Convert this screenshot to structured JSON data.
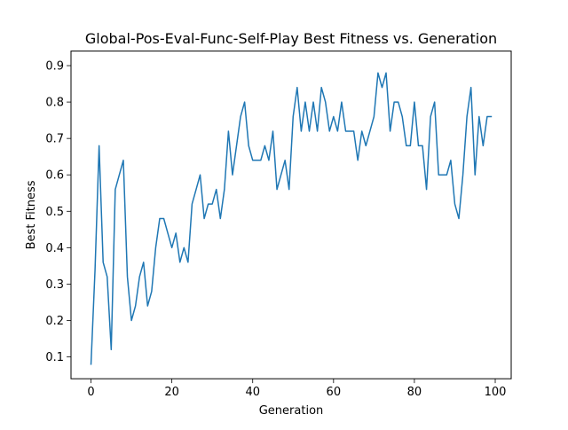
{
  "chart_data": {
    "type": "line",
    "title": "Global-Pos-Eval-Func-Self-Play Best Fitness vs. Generation",
    "xlabel": "Generation",
    "ylabel": "Best Fitness",
    "xlim": [
      -4.95,
      103.95
    ],
    "ylim": [
      0.04,
      0.94
    ],
    "xticks": [
      0,
      20,
      40,
      60,
      80,
      100
    ],
    "xtick_labels": [
      "0",
      "20",
      "40",
      "60",
      "80",
      "100"
    ],
    "yticks": [
      0.1,
      0.2,
      0.3,
      0.4,
      0.5,
      0.6,
      0.7,
      0.8,
      0.9
    ],
    "ytick_labels": [
      "0.1",
      "0.2",
      "0.3",
      "0.4",
      "0.5",
      "0.6",
      "0.7",
      "0.8",
      "0.9"
    ],
    "grid": false,
    "series": [
      {
        "color": "#1f77b4",
        "x": [
          0,
          1,
          2,
          3,
          4,
          5,
          6,
          7,
          8,
          9,
          10,
          11,
          12,
          13,
          14,
          15,
          16,
          17,
          18,
          19,
          20,
          21,
          22,
          23,
          24,
          25,
          26,
          27,
          28,
          29,
          30,
          31,
          32,
          33,
          34,
          35,
          36,
          37,
          38,
          39,
          40,
          41,
          42,
          43,
          44,
          45,
          46,
          47,
          48,
          49,
          50,
          51,
          52,
          53,
          54,
          55,
          56,
          57,
          58,
          59,
          60,
          61,
          62,
          63,
          64,
          65,
          66,
          67,
          68,
          69,
          70,
          71,
          72,
          73,
          74,
          75,
          76,
          77,
          78,
          79,
          80,
          81,
          82,
          83,
          84,
          85,
          86,
          87,
          88,
          89,
          90,
          91,
          92,
          93,
          94,
          95,
          96,
          97,
          98,
          99
        ],
        "values": [
          0.08,
          0.34,
          0.68,
          0.36,
          0.32,
          0.12,
          0.56,
          0.6,
          0.64,
          0.32,
          0.2,
          0.24,
          0.32,
          0.36,
          0.24,
          0.28,
          0.4,
          0.48,
          0.48,
          0.44,
          0.4,
          0.44,
          0.36,
          0.4,
          0.36,
          0.52,
          0.56,
          0.6,
          0.48,
          0.52,
          0.52,
          0.56,
          0.48,
          0.56,
          0.72,
          0.6,
          0.68,
          0.76,
          0.8,
          0.68,
          0.64,
          0.64,
          0.64,
          0.68,
          0.64,
          0.72,
          0.56,
          0.6,
          0.64,
          0.56,
          0.76,
          0.84,
          0.72,
          0.8,
          0.72,
          0.8,
          0.72,
          0.84,
          0.8,
          0.72,
          0.76,
          0.72,
          0.8,
          0.72,
          0.72,
          0.72,
          0.64,
          0.72,
          0.68,
          0.72,
          0.76,
          0.88,
          0.84,
          0.88,
          0.72,
          0.8,
          0.8,
          0.76,
          0.68,
          0.68,
          0.8,
          0.68,
          0.68,
          0.56,
          0.76,
          0.8,
          0.6,
          0.6,
          0.6,
          0.64,
          0.52,
          0.48,
          0.6,
          0.76,
          0.84,
          0.6,
          0.76,
          0.68,
          0.76,
          0.76
        ]
      }
    ]
  }
}
